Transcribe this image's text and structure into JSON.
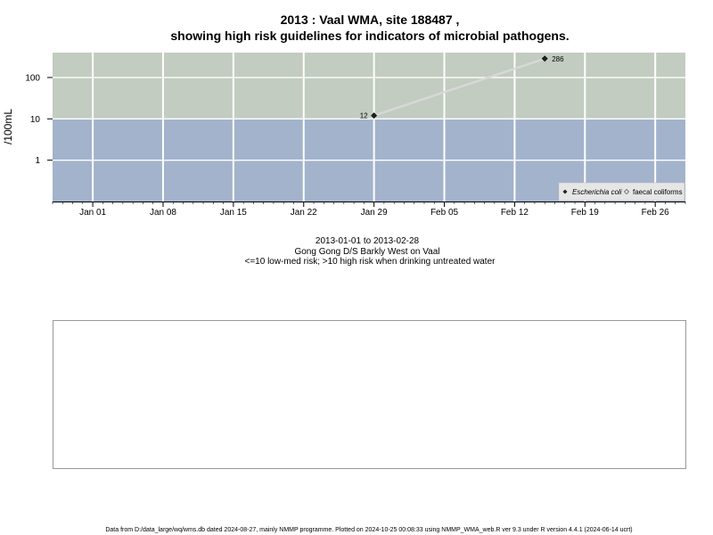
{
  "title": {
    "line1": "2013 : Vaal WMA, site 188487 ,",
    "line2": "showing high risk guidelines for indicators of microbial pathogens."
  },
  "colors": {
    "high_risk_band": "#c2ccc0",
    "low_risk_band": "#a3b3cc",
    "grid": "#ffffff",
    "line": "#d8d8d8",
    "point": "#222222",
    "legend_bg": "#e6e6e6"
  },
  "subtitle": {
    "range": "2013-01-01 to 2013-02-28",
    "site": "Gong Gong D/S Barkly West on Vaal",
    "risk_note": "<=10 low-med risk; >10 high risk when drinking untreated water"
  },
  "legend": {
    "placement": "bottom-right",
    "items": [
      {
        "label": "Escherichia coli",
        "marker": "filled-diamond",
        "italic": true
      },
      {
        "label": "faecal coliforms",
        "marker": "open-diamond",
        "italic": false
      }
    ]
  },
  "footer": "Data from D:/data_large/wq/wms.db dated 2024-08-27, mainly NMMP programme. Plotted on 2024-10-25 00:08:33 using NMMP_WMA_web.R ver 9.3 under R version 4.4.1 (2024-06-14 ucrt)",
  "chart_data": {
    "type": "line",
    "title": "2013 : Vaal WMA, site 188487 , showing high risk guidelines for indicators of microbial pathogens.",
    "xlabel": "",
    "ylabel": "/100mL",
    "y_scale": "log",
    "x_range": [
      "2012-12-28",
      "2013-03-01"
    ],
    "ylim": [
      0.1,
      400
    ],
    "threshold": 10,
    "grid": true,
    "x_ticks": [
      {
        "date": "2013-01-01",
        "label": "Jan 01"
      },
      {
        "date": "2013-01-08",
        "label": "Jan 08"
      },
      {
        "date": "2013-01-15",
        "label": "Jan 15"
      },
      {
        "date": "2013-01-22",
        "label": "Jan 22"
      },
      {
        "date": "2013-01-29",
        "label": "Jan 29"
      },
      {
        "date": "2013-02-05",
        "label": "Feb 05"
      },
      {
        "date": "2013-02-12",
        "label": "Feb 12"
      },
      {
        "date": "2013-02-19",
        "label": "Feb 19"
      },
      {
        "date": "2013-02-26",
        "label": "Feb 26"
      }
    ],
    "y_ticks": [
      {
        "value": 1,
        "label": "1"
      },
      {
        "value": 10,
        "label": "10"
      },
      {
        "value": 100,
        "label": "100"
      }
    ],
    "series": [
      {
        "name": "Escherichia coli",
        "points": [
          {
            "x": "2013-01-29",
            "y": 12,
            "label": "12"
          },
          {
            "x": "2013-02-15",
            "y": 286,
            "label": "286"
          }
        ]
      }
    ]
  }
}
